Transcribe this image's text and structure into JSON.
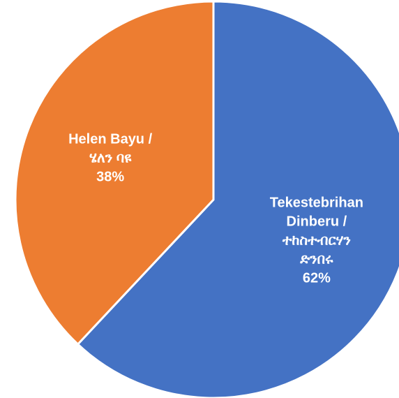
{
  "chart_data": {
    "type": "pie",
    "categories": [
      "Tekestebrihan Dinberu /\nተከስተብርሃን ድንበሩ",
      "Helen Bayu /\nሄለን ባዩ"
    ],
    "values": [
      62,
      38
    ],
    "value_labels": [
      "62%",
      "38%"
    ],
    "colors": [
      "#4472c4",
      "#ed7d31"
    ]
  }
}
